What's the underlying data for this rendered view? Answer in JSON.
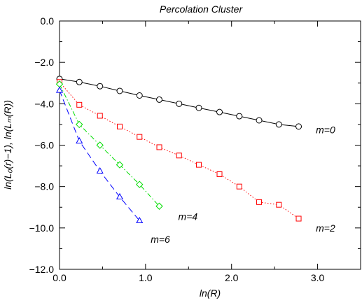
{
  "chart_data": {
    "type": "line",
    "title": "Percolation Cluster",
    "xlabel": "ln(R)",
    "ylabel": "ln(L₀(r)−1), ln(Lₘ(R))",
    "xlim": [
      0.0,
      3.5
    ],
    "ylim": [
      -12.0,
      0.0
    ],
    "x_ticks": [
      0.0,
      1.0,
      2.0,
      3.0
    ],
    "x_tick_labels": [
      "0.0",
      "1.0",
      "2.0",
      "3.0"
    ],
    "y_ticks": [
      0.0,
      -2.0,
      -4.0,
      -6.0,
      -8.0,
      -10.0,
      -12.0
    ],
    "y_tick_labels": [
      "0.0",
      "−2.0",
      "−4.0",
      "−6.0",
      "−8.0",
      "−10.0",
      "−12.0"
    ],
    "grid": false,
    "series": [
      {
        "name": "m=0",
        "color": "#000000",
        "dash": "solid",
        "marker": "circle",
        "label_at": [
          2.98,
          -5.25
        ],
        "x": [
          0.0,
          0.23,
          0.47,
          0.7,
          0.93,
          1.16,
          1.39,
          1.62,
          1.86,
          2.09,
          2.32,
          2.55,
          2.78
        ],
        "y": [
          -2.8,
          -2.95,
          -3.15,
          -3.38,
          -3.6,
          -3.8,
          -4.0,
          -4.2,
          -4.4,
          -4.6,
          -4.8,
          -5.0,
          -5.1
        ]
      },
      {
        "name": "m=2",
        "color": "#ff0000",
        "dash": "dotted",
        "marker": "square",
        "label_at": [
          2.98,
          -10.0
        ],
        "x": [
          0.0,
          0.23,
          0.47,
          0.7,
          0.93,
          1.16,
          1.39,
          1.62,
          1.86,
          2.09,
          2.32,
          2.55,
          2.78
        ],
        "y": [
          -2.95,
          -4.05,
          -4.58,
          -5.1,
          -5.6,
          -6.1,
          -6.5,
          -6.95,
          -7.4,
          -8.0,
          -8.75,
          -8.88,
          -9.55
        ]
      },
      {
        "name": "m=4",
        "color": "#00dd00",
        "dash": "dashdot",
        "marker": "diamond",
        "label_at": [
          1.38,
          -9.45
        ],
        "x": [
          0.0,
          0.23,
          0.47,
          0.7,
          0.93,
          1.16
        ],
        "y": [
          -3.05,
          -5.0,
          -6.0,
          -6.95,
          -7.9,
          -8.95
        ]
      },
      {
        "name": "m=6",
        "color": "#0000ff",
        "dash": "dashed",
        "marker": "triangle",
        "label_at": [
          1.06,
          -10.55
        ],
        "x": [
          0.0,
          0.23,
          0.47,
          0.7,
          0.93
        ],
        "y": [
          -3.35,
          -5.8,
          -7.25,
          -8.5,
          -9.65
        ]
      }
    ]
  }
}
